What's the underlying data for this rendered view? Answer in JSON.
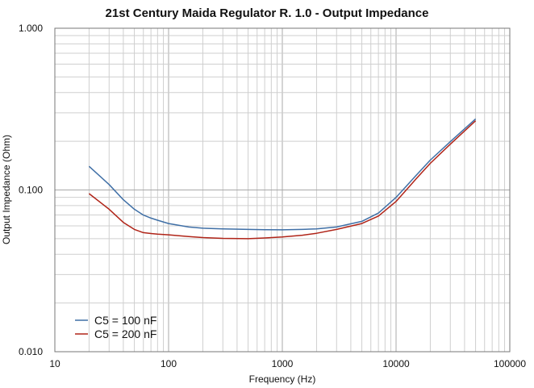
{
  "chart_data": {
    "type": "line",
    "title": "21st Century Maida Regulator R. 1.0 - Output Impedance",
    "xlabel": "Frequency (Hz)",
    "ylabel": "Output Impedance (Ohm)",
    "xscale": "log",
    "yscale": "log",
    "xlim": [
      10,
      100000
    ],
    "ylim": [
      0.01,
      1.0
    ],
    "x_ticks": [
      "10",
      "100",
      "1000",
      "10000",
      "100000"
    ],
    "y_ticks": [
      "0.010",
      "0.100",
      "1.000"
    ],
    "grid": true,
    "legend_position": "bottom-left",
    "series": [
      {
        "name": "C5 = 100 nF",
        "color": "#3f6fa6",
        "x": [
          20,
          30,
          40,
          50,
          60,
          70,
          80,
          100,
          150,
          200,
          300,
          500,
          700,
          1000,
          1500,
          2000,
          3000,
          5000,
          7000,
          10000,
          15000,
          20000,
          30000,
          50000
        ],
        "y": [
          0.14,
          0.108,
          0.087,
          0.076,
          0.07,
          0.067,
          0.065,
          0.062,
          0.059,
          0.058,
          0.0575,
          0.057,
          0.0568,
          0.0567,
          0.057,
          0.0575,
          0.059,
          0.064,
          0.072,
          0.09,
          0.123,
          0.153,
          0.199,
          0.275
        ]
      },
      {
        "name": "C5 = 200 nF",
        "color": "#b02418",
        "x": [
          20,
          30,
          40,
          50,
          60,
          70,
          80,
          100,
          150,
          200,
          300,
          500,
          700,
          1000,
          1500,
          2000,
          3000,
          5000,
          7000,
          10000,
          15000,
          20000,
          30000,
          50000
        ],
        "y": [
          0.095,
          0.076,
          0.063,
          0.057,
          0.0545,
          0.0538,
          0.0533,
          0.0528,
          0.0515,
          0.0508,
          0.0502,
          0.05,
          0.0505,
          0.0512,
          0.0525,
          0.054,
          0.057,
          0.062,
          0.069,
          0.085,
          0.117,
          0.146,
          0.192,
          0.268
        ]
      }
    ]
  }
}
